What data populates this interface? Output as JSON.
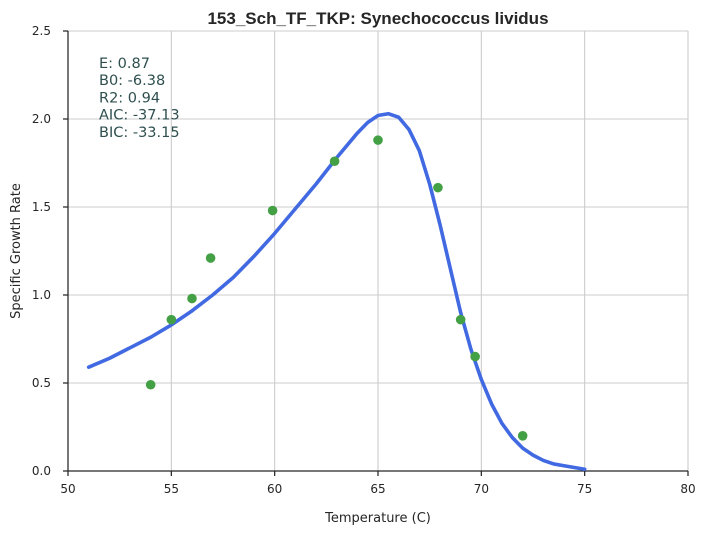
{
  "chart_data": {
    "type": "scatter",
    "title": "153_Sch_TF_TKP: Synechococcus lividus",
    "xlabel": "Temperature (C)",
    "ylabel": "Specific Growth Rate",
    "xlim": [
      50,
      80
    ],
    "ylim": [
      0,
      2.5
    ],
    "xticks": [
      50,
      55,
      60,
      65,
      70,
      75,
      80
    ],
    "yticks": [
      0.0,
      0.5,
      1.0,
      1.5,
      2.0,
      2.5
    ],
    "xtick_labels": [
      "50",
      "55",
      "60",
      "65",
      "70",
      "75",
      "80"
    ],
    "ytick_labels": [
      "0.0",
      "0.5",
      "1.0",
      "1.5",
      "2.0",
      "2.5"
    ],
    "grid": true,
    "stats": [
      {
        "label": "E:",
        "value": "0.87"
      },
      {
        "label": "B0:",
        "value": "-6.38"
      },
      {
        "label": "R2:",
        "value": "0.94"
      },
      {
        "label": "AIC:",
        "value": "-37.13"
      },
      {
        "label": "BIC:",
        "value": "-33.15"
      }
    ],
    "observed": {
      "color": "#44a045",
      "x": [
        54.0,
        55.0,
        56.0,
        56.9,
        59.9,
        62.9,
        65.0,
        67.9,
        69.0,
        69.7,
        72.0
      ],
      "y": [
        0.49,
        0.86,
        0.98,
        1.21,
        1.48,
        1.76,
        1.88,
        1.61,
        0.86,
        0.65,
        0.2
      ]
    },
    "fit": {
      "color": "#4169e1",
      "x": [
        51.0,
        52.0,
        53.0,
        54.0,
        55.0,
        56.0,
        57.0,
        58.0,
        59.0,
        60.0,
        61.0,
        62.0,
        63.0,
        64.0,
        64.5,
        65.0,
        65.5,
        66.0,
        66.5,
        67.0,
        67.5,
        68.0,
        68.5,
        69.0,
        69.5,
        70.0,
        70.5,
        71.0,
        71.5,
        72.0,
        72.5,
        73.0,
        73.5,
        74.0,
        74.5,
        75.0
      ],
      "y": [
        0.59,
        0.64,
        0.7,
        0.76,
        0.83,
        0.91,
        1.0,
        1.1,
        1.22,
        1.35,
        1.49,
        1.63,
        1.78,
        1.92,
        1.98,
        2.02,
        2.03,
        2.01,
        1.94,
        1.82,
        1.63,
        1.4,
        1.15,
        0.9,
        0.69,
        0.52,
        0.38,
        0.27,
        0.19,
        0.13,
        0.09,
        0.06,
        0.04,
        0.03,
        0.02,
        0.01
      ]
    }
  }
}
